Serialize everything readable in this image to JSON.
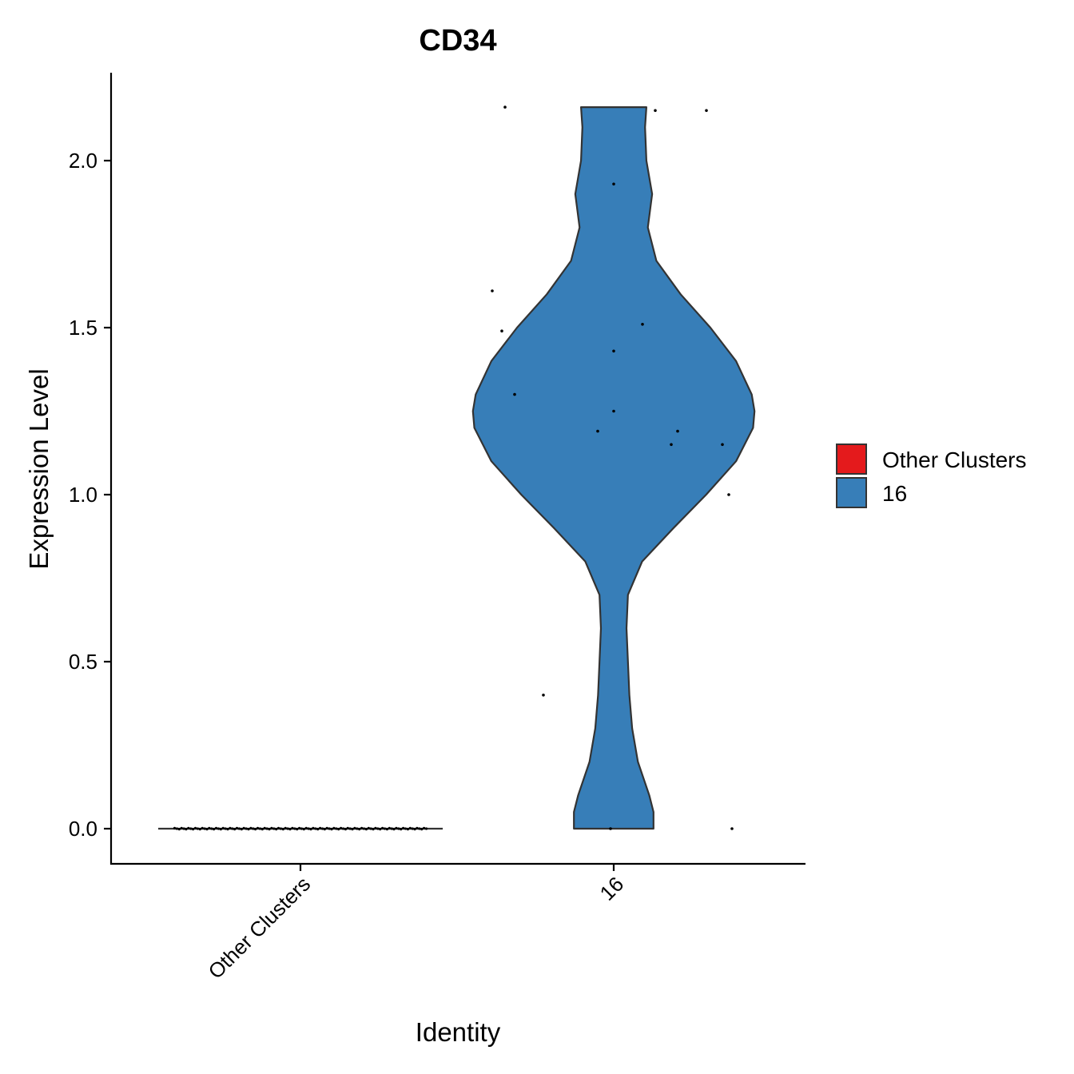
{
  "chart_data": {
    "type": "violin",
    "title": "CD34",
    "xlabel": "Identity",
    "ylabel": "Expression Level",
    "ylim": [
      -0.1,
      2.25
    ],
    "yticks": [
      0.0,
      0.5,
      1.0,
      1.5,
      2.0
    ],
    "ytick_labels": [
      "0.0",
      "0.5",
      "1.0",
      "1.5",
      "2.0"
    ],
    "categories": [
      "Other Clusters",
      "16"
    ],
    "legend": {
      "placement": "right",
      "entries": [
        {
          "label": "Other Clusters",
          "color": "#E41A1C"
        },
        {
          "label": "16",
          "color": "#377EB8"
        }
      ]
    },
    "series": [
      {
        "name": "Other Clusters",
        "color": "#E41A1C",
        "violin_profile": [
          [
            0.0,
            1.0
          ]
        ],
        "points": [
          [
            0.0,
            0.0
          ]
        ]
      },
      {
        "name": "16",
        "color": "#377EB8",
        "violin_profile": [
          [
            0.0,
            0.28
          ],
          [
            0.05,
            0.28
          ],
          [
            0.1,
            0.25
          ],
          [
            0.2,
            0.17
          ],
          [
            0.3,
            0.13
          ],
          [
            0.4,
            0.11
          ],
          [
            0.5,
            0.1
          ],
          [
            0.6,
            0.09
          ],
          [
            0.7,
            0.1
          ],
          [
            0.8,
            0.2
          ],
          [
            0.9,
            0.42
          ],
          [
            1.0,
            0.65
          ],
          [
            1.1,
            0.86
          ],
          [
            1.2,
            0.98
          ],
          [
            1.25,
            0.99
          ],
          [
            1.3,
            0.97
          ],
          [
            1.4,
            0.86
          ],
          [
            1.5,
            0.68
          ],
          [
            1.6,
            0.47
          ],
          [
            1.7,
            0.3
          ],
          [
            1.8,
            0.24
          ],
          [
            1.9,
            0.27
          ],
          [
            2.0,
            0.23
          ],
          [
            2.1,
            0.22
          ],
          [
            2.16,
            0.23
          ]
        ],
        "points": [
          [
            -0.01,
            0.0
          ],
          [
            0.37,
            0.0
          ],
          [
            -0.22,
            0.4
          ],
          [
            0.36,
            1.0
          ],
          [
            0.34,
            1.15
          ],
          [
            0.18,
            1.15
          ],
          [
            0.2,
            1.19
          ],
          [
            -0.05,
            1.19
          ],
          [
            0.0,
            1.25
          ],
          [
            -0.31,
            1.3
          ],
          [
            0.0,
            1.43
          ],
          [
            -0.35,
            1.49
          ],
          [
            0.09,
            1.51
          ],
          [
            -0.38,
            1.61
          ],
          [
            0.0,
            1.93
          ],
          [
            -0.34,
            2.16
          ],
          [
            0.13,
            2.15
          ],
          [
            0.29,
            2.15
          ]
        ]
      }
    ]
  }
}
